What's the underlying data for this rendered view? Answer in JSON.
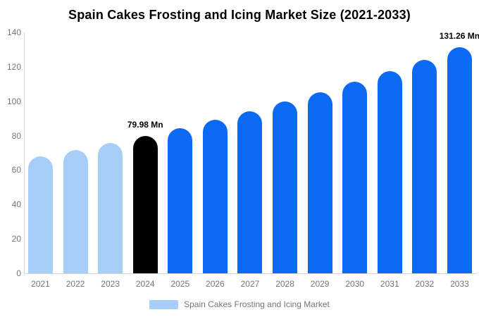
{
  "title": "Spain Cakes Frosting and Icing Market Size (2021-2033)",
  "legend": {
    "label": "Spain Cakes Frosting and Icing Market"
  },
  "colors": {
    "historical": "#a6cef7",
    "base_year": "#000000",
    "forecast": "#0a6af4",
    "axis_line": "#d8d8d8",
    "tick_text": "#757575",
    "annotation_text": "#000000",
    "background": "#ffffff"
  },
  "chart_data": {
    "type": "bar",
    "title": "Spain Cakes Frosting and Icing Market Size (2021-2033)",
    "unit": "Mn",
    "categories": [
      "2021",
      "2022",
      "2023",
      "2024",
      "2025",
      "2026",
      "2027",
      "2028",
      "2029",
      "2030",
      "2031",
      "2032",
      "2033"
    ],
    "values": [
      67.8,
      71.66,
      75.71,
      79.98,
      84.51,
      89.29,
      94.35,
      99.69,
      105.33,
      111.29,
      117.59,
      124.24,
      131.26
    ],
    "bar_roles": [
      "historical",
      "historical",
      "historical",
      "base_year",
      "forecast",
      "forecast",
      "forecast",
      "forecast",
      "forecast",
      "forecast",
      "forecast",
      "forecast",
      "forecast"
    ],
    "annotations": [
      {
        "category": "2024",
        "text": "79.98 Mn"
      },
      {
        "category": "2033",
        "text": "131.26 Mn"
      }
    ],
    "xlabel": "",
    "ylabel": "",
    "ylim": [
      0,
      140
    ],
    "yticks": [
      0,
      20,
      40,
      60,
      80,
      100,
      120,
      140
    ],
    "grid": false,
    "legend_position": "bottom"
  }
}
